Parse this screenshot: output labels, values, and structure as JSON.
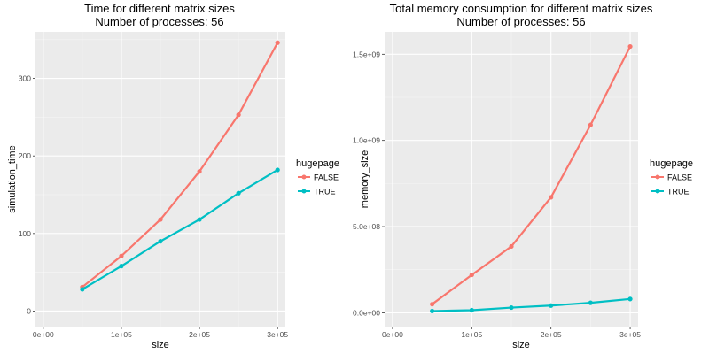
{
  "chart_data": [
    {
      "type": "line",
      "title": "Time for different matrix sizes",
      "subtitle": "Number of processes: 56",
      "xlabel": "size",
      "ylabel": "simulation_time",
      "xlim": [
        -10000,
        310000
      ],
      "ylim": [
        -20,
        360
      ],
      "x_ticks": [
        0,
        100000,
        200000,
        300000
      ],
      "x_tick_labels": [
        "0e+00",
        "1e+05",
        "2e+05",
        "3e+05"
      ],
      "y_ticks": [
        0,
        100,
        200,
        300
      ],
      "y_tick_labels": [
        "0",
        "100",
        "200",
        "300"
      ],
      "grid": true,
      "legend_title": "hugepage",
      "legend_position": "right",
      "series": [
        {
          "name": "FALSE",
          "color": "#f8766d",
          "x": [
            50000,
            100000,
            150000,
            200000,
            250000,
            300000
          ],
          "y": [
            31,
            71,
            118,
            180,
            253,
            346
          ]
        },
        {
          "name": "TRUE",
          "color": "#00bfc4",
          "x": [
            50000,
            100000,
            150000,
            200000,
            250000,
            300000
          ],
          "y": [
            28,
            58,
            90,
            118,
            152,
            182
          ]
        }
      ]
    },
    {
      "type": "line",
      "title": "Total memory consumption for different matrix sizes",
      "subtitle": "Number of processes: 56",
      "xlabel": "size",
      "ylabel": "memory_size",
      "xlim": [
        -10000,
        310000
      ],
      "ylim": [
        -80000000,
        1630000000
      ],
      "x_ticks": [
        0,
        100000,
        200000,
        300000
      ],
      "x_tick_labels": [
        "0e+00",
        "1e+05",
        "2e+05",
        "3e+05"
      ],
      "y_ticks": [
        0,
        500000000,
        1000000000,
        1500000000
      ],
      "y_tick_labels": [
        "0.0e+00",
        "5.0e+08",
        "1.0e+09",
        "1.5e+09"
      ],
      "grid": true,
      "legend_title": "hugepage",
      "legend_position": "right",
      "series": [
        {
          "name": "FALSE",
          "color": "#f8766d",
          "x": [
            50000,
            100000,
            150000,
            200000,
            250000,
            300000
          ],
          "y": [
            50000000,
            220000000,
            385000000,
            670000000,
            1090000000,
            1545000000
          ]
        },
        {
          "name": "TRUE",
          "color": "#00bfc4",
          "x": [
            50000,
            100000,
            150000,
            200000,
            250000,
            300000
          ],
          "y": [
            10000000,
            15000000,
            30000000,
            42000000,
            58000000,
            80000000
          ]
        }
      ]
    }
  ]
}
